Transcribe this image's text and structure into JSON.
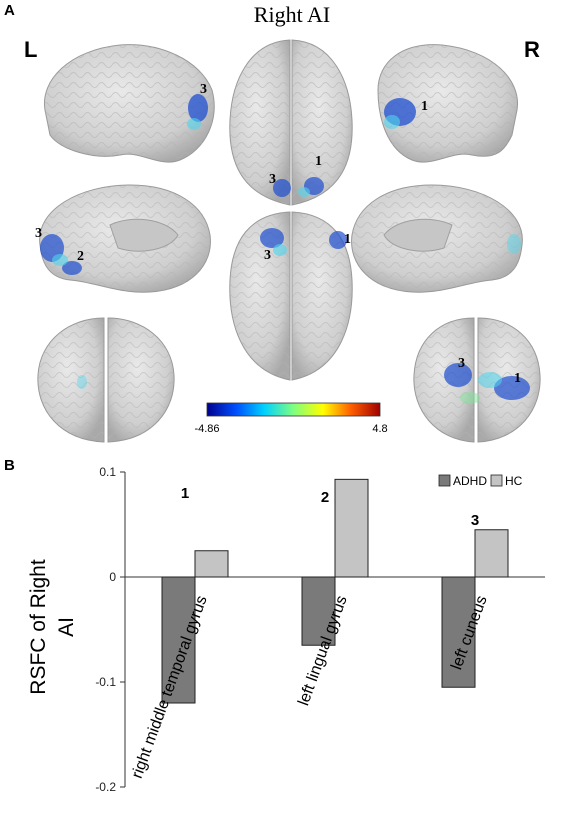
{
  "panel_a": {
    "label": "A",
    "title": "Right AI",
    "left_label": "L",
    "right_label": "R",
    "markers": {
      "lat_left": [
        "3"
      ],
      "dorsal": [
        "3",
        "1"
      ],
      "lat_right": [
        "1"
      ],
      "med_left": [
        "3",
        "2"
      ],
      "ventral": [
        "3",
        "1"
      ],
      "post_right": [
        "3",
        "1"
      ]
    },
    "colorbar": {
      "min_label": "-4.86",
      "max_label": "4.8",
      "colors": [
        "#00008f",
        "#0050ff",
        "#00d0ff",
        "#7fff80",
        "#ffff00",
        "#ff6000",
        "#a00000"
      ]
    }
  },
  "panel_b": {
    "label": "B"
  },
  "colors": {
    "adhd": "#7a7a7a",
    "hc": "#c4c4c4",
    "brain": "#d4d4d4"
  },
  "chart_data": {
    "type": "bar",
    "categories": [
      "right middle temporal gyrus",
      "left lingual gyrus",
      "left cuneus"
    ],
    "category_markers": [
      "1",
      "2",
      "3"
    ],
    "series": [
      {
        "name": "ADHD",
        "values": [
          -0.12,
          -0.065,
          -0.105
        ]
      },
      {
        "name": "HC",
        "values": [
          0.025,
          0.093,
          0.045
        ]
      }
    ],
    "ylabel": "RSFC of Right AI",
    "ylabel_lines": [
      "RSFC of Right",
      "AI"
    ],
    "ylim": [
      -0.2,
      0.1
    ],
    "yticks": [
      0.1,
      0,
      -0.1,
      -0.2
    ],
    "ytick_labels": [
      "0.1",
      "0",
      "-0.1",
      "-0.2"
    ],
    "legend": "top-right",
    "grid": false
  }
}
